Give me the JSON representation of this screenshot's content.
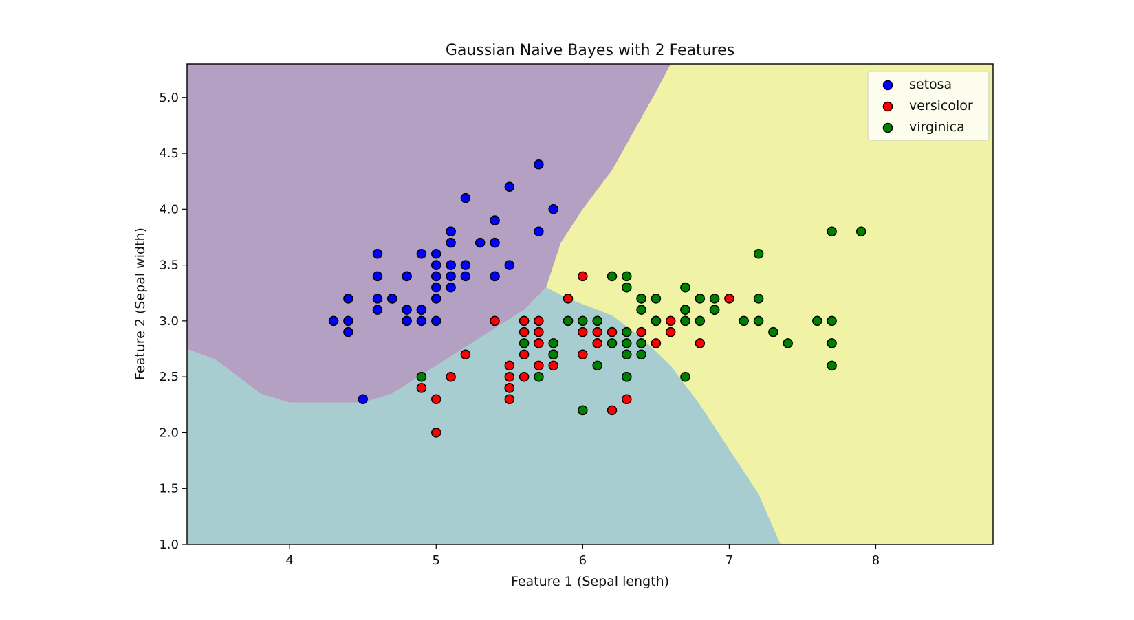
{
  "chart_data": {
    "type": "scatter",
    "title": "Gaussian Naive Bayes with 2 Features",
    "xlabel": "Feature 1 (Sepal length)",
    "ylabel": "Feature 2 (Sepal width)",
    "xlim": [
      3.3,
      8.8
    ],
    "ylim": [
      1.0,
      5.3
    ],
    "xticks": [
      4,
      5,
      6,
      7,
      8
    ],
    "yticks": [
      1.0,
      1.5,
      2.0,
      2.5,
      3.0,
      3.5,
      4.0,
      4.5,
      5.0
    ],
    "grid": false,
    "legend_position": "top-right",
    "decision_regions": [
      {
        "class": "setosa",
        "color": "#b3a0c3"
      },
      {
        "class": "versicolor",
        "color": "#a8cdd1"
      },
      {
        "class": "virginica",
        "color": "#f0f2a6"
      }
    ],
    "series": [
      {
        "name": "setosa",
        "color": "#0000ff",
        "points": [
          [
            5.1,
            3.5
          ],
          [
            4.9,
            3.0
          ],
          [
            4.7,
            3.2
          ],
          [
            4.6,
            3.1
          ],
          [
            5.0,
            3.6
          ],
          [
            5.4,
            3.9
          ],
          [
            4.6,
            3.4
          ],
          [
            5.0,
            3.4
          ],
          [
            4.4,
            2.9
          ],
          [
            4.9,
            3.1
          ],
          [
            5.4,
            3.7
          ],
          [
            4.8,
            3.4
          ],
          [
            4.8,
            3.0
          ],
          [
            4.3,
            3.0
          ],
          [
            5.8,
            4.0
          ],
          [
            5.7,
            4.4
          ],
          [
            5.4,
            3.9
          ],
          [
            5.1,
            3.5
          ],
          [
            5.7,
            3.8
          ],
          [
            5.1,
            3.8
          ],
          [
            5.4,
            3.4
          ],
          [
            5.1,
            3.7
          ],
          [
            4.6,
            3.6
          ],
          [
            5.1,
            3.3
          ],
          [
            4.8,
            3.4
          ],
          [
            5.0,
            3.0
          ],
          [
            5.0,
            3.4
          ],
          [
            5.2,
            3.5
          ],
          [
            5.2,
            3.4
          ],
          [
            4.7,
            3.2
          ],
          [
            4.8,
            3.1
          ],
          [
            5.4,
            3.4
          ],
          [
            5.2,
            4.1
          ],
          [
            5.5,
            4.2
          ],
          [
            4.9,
            3.1
          ],
          [
            5.0,
            3.2
          ],
          [
            5.5,
            3.5
          ],
          [
            4.9,
            3.6
          ],
          [
            4.4,
            3.0
          ],
          [
            5.1,
            3.4
          ],
          [
            5.0,
            3.5
          ],
          [
            4.5,
            2.3
          ],
          [
            4.4,
            3.2
          ],
          [
            5.0,
            3.5
          ],
          [
            5.1,
            3.8
          ],
          [
            4.8,
            3.0
          ],
          [
            5.1,
            3.8
          ],
          [
            4.6,
            3.2
          ],
          [
            5.3,
            3.7
          ],
          [
            5.0,
            3.3
          ]
        ]
      },
      {
        "name": "versicolor",
        "color": "#ff0000",
        "points": [
          [
            7.0,
            3.2
          ],
          [
            6.4,
            3.2
          ],
          [
            6.9,
            3.1
          ],
          [
            5.5,
            2.3
          ],
          [
            6.5,
            2.8
          ],
          [
            5.7,
            2.8
          ],
          [
            6.3,
            3.3
          ],
          [
            4.9,
            2.4
          ],
          [
            6.6,
            2.9
          ],
          [
            5.2,
            2.7
          ],
          [
            5.0,
            2.0
          ],
          [
            5.9,
            3.0
          ],
          [
            6.0,
            2.2
          ],
          [
            6.1,
            2.9
          ],
          [
            5.6,
            2.9
          ],
          [
            6.7,
            3.1
          ],
          [
            5.6,
            3.0
          ],
          [
            5.8,
            2.7
          ],
          [
            6.2,
            2.2
          ],
          [
            5.6,
            2.5
          ],
          [
            5.9,
            3.2
          ],
          [
            6.1,
            2.8
          ],
          [
            6.3,
            2.5
          ],
          [
            6.1,
            2.8
          ],
          [
            6.4,
            2.9
          ],
          [
            6.6,
            3.0
          ],
          [
            6.8,
            2.8
          ],
          [
            6.7,
            3.0
          ],
          [
            6.0,
            2.9
          ],
          [
            5.7,
            2.6
          ],
          [
            5.5,
            2.4
          ],
          [
            5.5,
            2.4
          ],
          [
            5.8,
            2.7
          ],
          [
            6.0,
            2.7
          ],
          [
            5.4,
            3.0
          ],
          [
            6.0,
            3.4
          ],
          [
            6.7,
            3.1
          ],
          [
            6.3,
            2.3
          ],
          [
            5.6,
            3.0
          ],
          [
            5.5,
            2.5
          ],
          [
            5.5,
            2.6
          ],
          [
            6.1,
            3.0
          ],
          [
            5.8,
            2.6
          ],
          [
            5.0,
            2.3
          ],
          [
            5.6,
            2.7
          ],
          [
            5.7,
            3.0
          ],
          [
            5.7,
            2.9
          ],
          [
            6.2,
            2.9
          ],
          [
            5.1,
            2.5
          ],
          [
            5.7,
            2.8
          ]
        ]
      },
      {
        "name": "virginica",
        "color": "#008000",
        "points": [
          [
            6.3,
            3.3
          ],
          [
            5.8,
            2.7
          ],
          [
            7.1,
            3.0
          ],
          [
            6.3,
            2.9
          ],
          [
            6.5,
            3.0
          ],
          [
            7.6,
            3.0
          ],
          [
            4.9,
            2.5
          ],
          [
            7.3,
            2.9
          ],
          [
            6.7,
            2.5
          ],
          [
            7.2,
            3.6
          ],
          [
            6.5,
            3.2
          ],
          [
            6.4,
            2.7
          ],
          [
            6.8,
            3.0
          ],
          [
            5.7,
            2.5
          ],
          [
            5.8,
            2.8
          ],
          [
            6.4,
            3.2
          ],
          [
            6.5,
            3.0
          ],
          [
            7.7,
            3.8
          ],
          [
            7.7,
            2.6
          ],
          [
            6.0,
            2.2
          ],
          [
            6.9,
            3.2
          ],
          [
            5.6,
            2.8
          ],
          [
            7.7,
            2.8
          ],
          [
            6.3,
            2.7
          ],
          [
            6.7,
            3.3
          ],
          [
            7.2,
            3.2
          ],
          [
            6.2,
            2.8
          ],
          [
            6.1,
            3.0
          ],
          [
            6.4,
            2.8
          ],
          [
            7.2,
            3.0
          ],
          [
            7.4,
            2.8
          ],
          [
            7.9,
            3.8
          ],
          [
            6.4,
            2.8
          ],
          [
            6.3,
            2.8
          ],
          [
            6.1,
            2.6
          ],
          [
            7.7,
            3.0
          ],
          [
            6.3,
            3.4
          ],
          [
            6.4,
            3.1
          ],
          [
            6.0,
            3.0
          ],
          [
            6.9,
            3.1
          ],
          [
            6.7,
            3.1
          ],
          [
            6.9,
            3.1
          ],
          [
            5.8,
            2.7
          ],
          [
            6.8,
            3.2
          ],
          [
            6.7,
            3.3
          ],
          [
            6.7,
            3.0
          ],
          [
            6.3,
            2.5
          ],
          [
            6.5,
            3.0
          ],
          [
            6.2,
            3.4
          ],
          [
            5.9,
            3.0
          ]
        ]
      }
    ]
  }
}
